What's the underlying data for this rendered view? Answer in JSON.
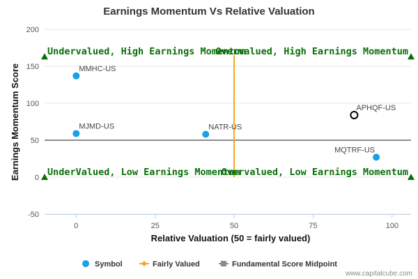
{
  "chart_data": {
    "type": "scatter",
    "title": "Earnings Momentum Vs Relative Valuation",
    "xlabel": "Relative Valuation (50 = fairly valued)",
    "ylabel": "Earnings Momentum Score",
    "xlim": [
      -10,
      106
    ],
    "ylim": [
      -50,
      200
    ],
    "x_ticks": [
      0,
      25,
      50,
      75,
      100
    ],
    "y_ticks": [
      -50,
      0,
      50,
      100,
      150,
      200
    ],
    "grid": "horizontal",
    "legend_position": "bottom",
    "legend": [
      "Symbol",
      "Fairly Valued",
      "Fundamental Score Midpoint"
    ],
    "series": [
      {
        "name": "Symbol",
        "color": "#1aa0e6",
        "points": [
          {
            "label": "MMHC-US",
            "x": 0,
            "y": 137
          },
          {
            "label": "MJMD-US",
            "x": 0,
            "y": 59
          },
          {
            "label": "NATR-US",
            "x": 41,
            "y": 58
          },
          {
            "label": "MQTRF-US",
            "x": 95,
            "y": 27
          }
        ]
      }
    ],
    "highlight": {
      "label": "APHQF-US",
      "x": 88,
      "y": 84,
      "style": "hollow-circle",
      "color": "#000000"
    },
    "fairly_valued_line": {
      "x": 50,
      "y_range": [
        0,
        165
      ],
      "color": "#f5a623"
    },
    "midpoint_line": {
      "y": 50,
      "color": "#8c8c8c"
    },
    "quadrant_labels": [
      {
        "text": "Undervalued, High Earnings Momentum",
        "x": -10,
        "y": 163,
        "marker_color": "#0a6e0a"
      },
      {
        "text": "Overvalued, High Earnings Momentum",
        "x": 106,
        "y": 163,
        "marker_color": "#0a6e0a"
      },
      {
        "text": "UnderValued, Low Earnings Momentum",
        "x": -10,
        "y": 0,
        "marker_color": "#0a6e0a"
      },
      {
        "text": "Overvalued, Low Earnings Momentum",
        "x": 106,
        "y": 0,
        "marker_color": "#0a6e0a"
      }
    ]
  },
  "watermark": "www.capitalcube.com"
}
